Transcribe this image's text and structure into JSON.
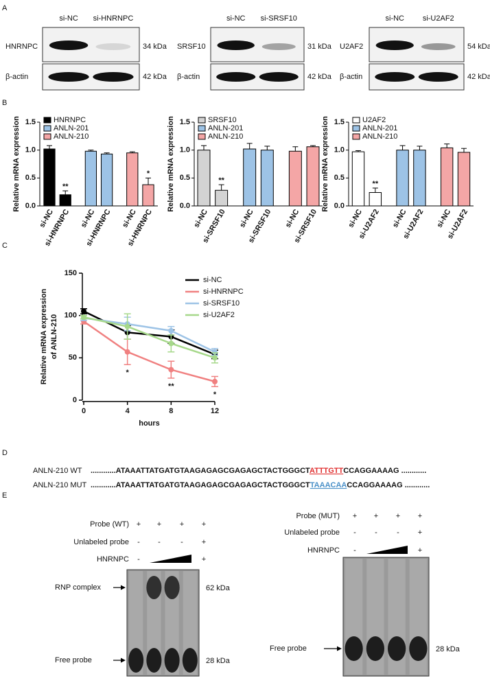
{
  "panel_labels": [
    "A",
    "B",
    "C",
    "D",
    "E"
  ],
  "blots": [
    {
      "lanes": [
        "si-NC",
        "si-HNRNPC"
      ],
      "target": "HNRNPC",
      "target_kda": "34 kDa",
      "control": "β-actin",
      "control_kda": "42 kDa"
    },
    {
      "lanes": [
        "si-NC",
        "si-SRSF10"
      ],
      "target": "SRSF10",
      "target_kda": "31 kDa",
      "control": "β-actin",
      "control_kda": "42 kDa"
    },
    {
      "lanes": [
        "si-NC",
        "si-U2AF2"
      ],
      "target": "U2AF2",
      "target_kda": "54 kDa",
      "control": "β-actin",
      "control_kda": "42 kDa"
    }
  ],
  "chart_data": [
    {
      "type": "bar",
      "ylabel": "Relative mRNA expression",
      "legend": "upper left",
      "categories": [
        "si-NC",
        "si-HNRNPC",
        "si-NC",
        "si-HNRNPC",
        "si-NC",
        "si-HNRNPC"
      ],
      "ylim": [
        0,
        1.5
      ],
      "yticks": [
        {
          "value": 0,
          "label": "0.0"
        },
        0.5,
        {
          "value": 1,
          "label": "1.0"
        },
        1.5
      ],
      "series": [
        {
          "name": "HNRNPC",
          "color": "#000000",
          "values": [
            1.02,
            0.2,
            null,
            null,
            null,
            null
          ],
          "errors": [
            0.06,
            0.07,
            null,
            null,
            null,
            null
          ],
          "significance": [
            null,
            "**",
            null,
            null,
            null,
            null
          ]
        },
        {
          "name": "ANLN-201",
          "color": "#9dc3e6",
          "values": [
            null,
            null,
            0.98,
            0.93,
            null,
            null
          ],
          "errors": [
            null,
            null,
            0.02,
            0.02,
            null,
            null
          ],
          "significance": [
            null,
            null,
            null,
            null,
            null,
            null
          ]
        },
        {
          "name": "ANLN-210",
          "color": "#f4a6a6",
          "values": [
            null,
            null,
            null,
            null,
            0.95,
            0.38
          ],
          "errors": [
            null,
            null,
            null,
            null,
            0.02,
            0.12
          ],
          "significance": [
            null,
            null,
            null,
            null,
            null,
            "*"
          ]
        }
      ]
    },
    {
      "type": "bar",
      "ylabel": "Relative mRNA expression",
      "legend": "upper left",
      "categories": [
        "si-NC",
        "si-SRSF10",
        "si-NC",
        "si-SRSF10",
        "si-NC",
        "si-SRSF10"
      ],
      "ylim": [
        0,
        1.5
      ],
      "yticks": [
        {
          "value": 0,
          "label": "0.0"
        },
        0.5,
        {
          "value": 1,
          "label": "1.0"
        },
        1.5
      ],
      "series": [
        {
          "name": "SRSF10",
          "color": "#d3d3d3",
          "values": [
            1.0,
            0.28,
            null,
            null,
            null,
            null
          ],
          "errors": [
            0.08,
            0.1,
            null,
            null,
            null,
            null
          ],
          "significance": [
            null,
            "**",
            null,
            null,
            null,
            null
          ]
        },
        {
          "name": "ANLN-201",
          "color": "#9dc3e6",
          "values": [
            null,
            null,
            1.02,
            1.0,
            null,
            null
          ],
          "errors": [
            null,
            null,
            0.1,
            0.07,
            null,
            null
          ],
          "significance": [
            null,
            null,
            null,
            null,
            null,
            null
          ]
        },
        {
          "name": "ANLN-210",
          "color": "#f4a6a6",
          "values": [
            null,
            null,
            null,
            null,
            0.98,
            1.06
          ],
          "errors": [
            null,
            null,
            null,
            null,
            0.08,
            0.02
          ],
          "significance": [
            null,
            null,
            null,
            null,
            null,
            null
          ]
        }
      ]
    },
    {
      "type": "bar",
      "ylabel": "Relative mRNA expression",
      "legend": "upper left",
      "categories": [
        "si-NC",
        "si-U2AF2",
        "si-NC",
        "si-U2AF2",
        "si-NC",
        "si-U2AF2"
      ],
      "ylim": [
        0,
        1.5
      ],
      "yticks": [
        {
          "value": 0,
          "label": "0.0"
        },
        0.5,
        {
          "value": 1,
          "label": "1.0"
        },
        1.5
      ],
      "series": [
        {
          "name": "U2AF2",
          "color": "#ffffff",
          "values": [
            0.97,
            0.24,
            null,
            null,
            null,
            null
          ],
          "errors": [
            0.02,
            0.08,
            null,
            null,
            null,
            null
          ],
          "significance": [
            null,
            "**",
            null,
            null,
            null,
            null
          ]
        },
        {
          "name": "ANLN-201",
          "color": "#9dc3e6",
          "values": [
            null,
            null,
            1.0,
            1.0,
            null,
            null
          ],
          "errors": [
            null,
            null,
            0.08,
            0.07,
            null,
            null
          ],
          "significance": [
            null,
            null,
            null,
            null,
            null,
            null
          ]
        },
        {
          "name": "ANLN-210",
          "color": "#f4a6a6",
          "values": [
            null,
            null,
            null,
            null,
            1.04,
            0.96
          ],
          "errors": [
            null,
            null,
            null,
            null,
            0.07,
            0.07
          ],
          "significance": [
            null,
            null,
            null,
            null,
            null,
            null
          ]
        }
      ]
    },
    {
      "type": "line",
      "ylabel": [
        "Relative mRNA expression",
        "of ANLN-210"
      ],
      "xlabel": "hours",
      "legend": "upper right",
      "x": [
        0,
        4,
        8,
        12
      ],
      "xlim": [
        0,
        12
      ],
      "xticks": [
        0,
        4,
        8,
        12
      ],
      "ylim": [
        0,
        150
      ],
      "yticks": [
        0,
        50,
        100,
        150
      ],
      "series": [
        {
          "name": "si-NC",
          "color": "#000000",
          "values": [
            105,
            80,
            75,
            54
          ],
          "errors": [
            3,
            8,
            8,
            5
          ],
          "significance": [
            null,
            null,
            null,
            null
          ]
        },
        {
          "name": "si-HNRNPC",
          "color": "#f08080",
          "values": [
            93,
            57,
            36,
            22
          ],
          "errors": [
            3,
            15,
            10,
            6
          ],
          "significance": [
            null,
            "*",
            "**",
            "*"
          ]
        },
        {
          "name": "si-SRSF10",
          "color": "#9dc3e6",
          "values": [
            97,
            90,
            82,
            57
          ],
          "errors": [
            3,
            8,
            5,
            4
          ],
          "significance": [
            null,
            null,
            null,
            null
          ]
        },
        {
          "name": "si-U2AF2",
          "color": "#a6d88a",
          "values": [
            98,
            87,
            67,
            50
          ],
          "errors": [
            2,
            15,
            10,
            6
          ],
          "significance": [
            null,
            null,
            null,
            null
          ]
        }
      ]
    }
  ],
  "sequences": [
    {
      "label": "ANLN-210 WT",
      "prefix": "............ATAAATTATGATGTAAGAGAGCGAGAGCTACTGGGCT",
      "motif": "ATTTGTT",
      "suffix": "CCAGGAAAAG ............",
      "motif_color": "#e03030"
    },
    {
      "label": "ANLN-210 MUT",
      "prefix": "............ATAAATTATGATGTAAGAGAGCGAGAGCTACTGGGCT",
      "motif": "TAAACAA",
      "suffix": "CCAGGAAAAG ............",
      "motif_color": "#4a90c8"
    }
  ],
  "emsa": [
    {
      "rows": [
        {
          "label": "Probe (WT)",
          "marks": [
            "+",
            "+",
            "+",
            "+"
          ]
        },
        {
          "label": "Unlabeled probe",
          "marks": [
            "-",
            "-",
            "-",
            "+"
          ]
        },
        {
          "label": "HNRNPC",
          "marks": [
            "-",
            null,
            null,
            "+"
          ]
        }
      ],
      "bands": [
        {
          "label": "RNP complex",
          "size": "62 kDa"
        },
        {
          "label": "Free probe",
          "size": "28 kDa"
        }
      ]
    },
    {
      "rows": [
        {
          "label": "Probe (MUT)",
          "marks": [
            "+",
            "+",
            "+",
            "+"
          ]
        },
        {
          "label": "Unlabeled probe",
          "marks": [
            "-",
            "-",
            "-",
            "+"
          ]
        },
        {
          "label": "HNRNPC",
          "marks": [
            "-",
            null,
            null,
            "+"
          ]
        }
      ],
      "bands": [
        {
          "label": "Free probe",
          "size": "28 kDa"
        }
      ]
    }
  ]
}
